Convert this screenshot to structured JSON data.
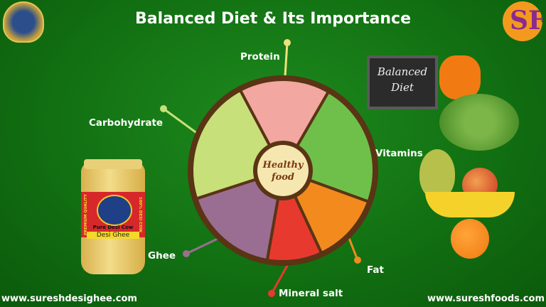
{
  "title": "Balanced Diet & Its Importance",
  "logo_left": {
    "text": "SURESH GHEE"
  },
  "logo_right": {
    "text": "SF"
  },
  "wheel": {
    "center_text_line1": "Healthy",
    "center_text_line2": "food",
    "segments": [
      {
        "label": "Protein",
        "color": "#f2a7a0",
        "dot": "#f0e07a"
      },
      {
        "label": "Vitamins",
        "color": "#6fc04a",
        "dot": "#8ed66a"
      },
      {
        "label": "Fat",
        "color": "#f28a1e",
        "dot": "#f28a1e"
      },
      {
        "label": "Mineral salt",
        "color": "#e8392e",
        "dot": "#e8392e"
      },
      {
        "label": "Ghee",
        "color": "#9a6e93",
        "dot": "#9a6e93"
      },
      {
        "label": "Carbohydrate",
        "color": "#c7e07a",
        "dot": "#c7e07a"
      }
    ]
  },
  "chalkboard": {
    "line1": "Balanced",
    "line2": "Diet"
  },
  "jar": {
    "line1": "Pure Desi Cow",
    "line2": "Desi Ghee",
    "side1": "PREMIUM QUALITY",
    "side2": "100% DESI COW"
  },
  "footer": {
    "left_url": "www.sureshdesighee.com",
    "right_url": "www.sureshfoods.com"
  }
}
